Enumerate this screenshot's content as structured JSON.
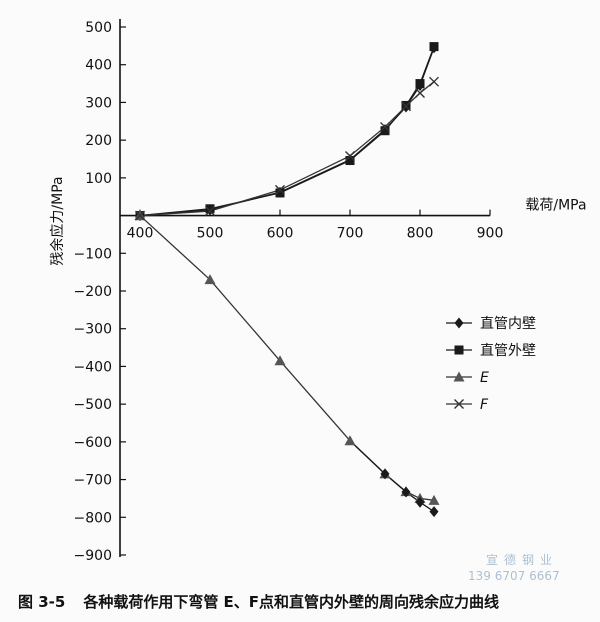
{
  "chart_data": {
    "type": "line",
    "xlabel": "载荷/MPa",
    "ylabel": "残余应力/MPa",
    "xlim": [
      400,
      900
    ],
    "ylim": [
      -900,
      500
    ],
    "xticks": [
      400,
      500,
      600,
      700,
      800,
      900
    ],
    "yticks": [
      500,
      400,
      300,
      200,
      100,
      -100,
      -200,
      -300,
      -400,
      -500,
      -600,
      -700,
      -800,
      -900
    ],
    "grid": false,
    "legend_position": "right",
    "series": [
      {
        "name": "直管内壁",
        "marker": "diamond",
        "color": "#1a1a1a",
        "x": [
          400,
          500,
          600,
          700,
          750,
          780,
          800,
          820
        ],
        "y": [
          0,
          15,
          62,
          148,
          228,
          288,
          345,
          445
        ]
      },
      {
        "name": "直管外壁",
        "marker": "square",
        "color": "#1a1a1a",
        "x": [
          400,
          500,
          600,
          700,
          750,
          780,
          800,
          820
        ],
        "y": [
          0,
          18,
          60,
          146,
          225,
          292,
          350,
          448
        ]
      },
      {
        "name": "E",
        "marker": "triangle",
        "color": "#333333",
        "x": [
          400,
          500,
          600,
          700,
          750,
          780,
          800,
          820
        ],
        "y": [
          0,
          -170,
          -385,
          -597,
          -685,
          -732,
          -750,
          -755
        ]
      },
      {
        "name": "F",
        "marker": "x",
        "color": "#333333",
        "x": [
          400,
          500,
          600,
          700,
          750,
          780,
          800,
          820
        ],
        "y": [
          0,
          12,
          68,
          158,
          235,
          290,
          325,
          355
        ]
      }
    ],
    "extra_points": {
      "series": "直管内壁",
      "x": [
        750,
        780,
        800,
        820
      ],
      "y": [
        -685,
        -733,
        -760,
        -785
      ]
    }
  },
  "caption": {
    "number": "图 3-5",
    "text": "各种载荷作用下弯管 E、F点和直管内外壁的周向残余应力曲线"
  },
  "watermark": {
    "company": "宣德钢业",
    "phone": "139 6707 6667"
  }
}
